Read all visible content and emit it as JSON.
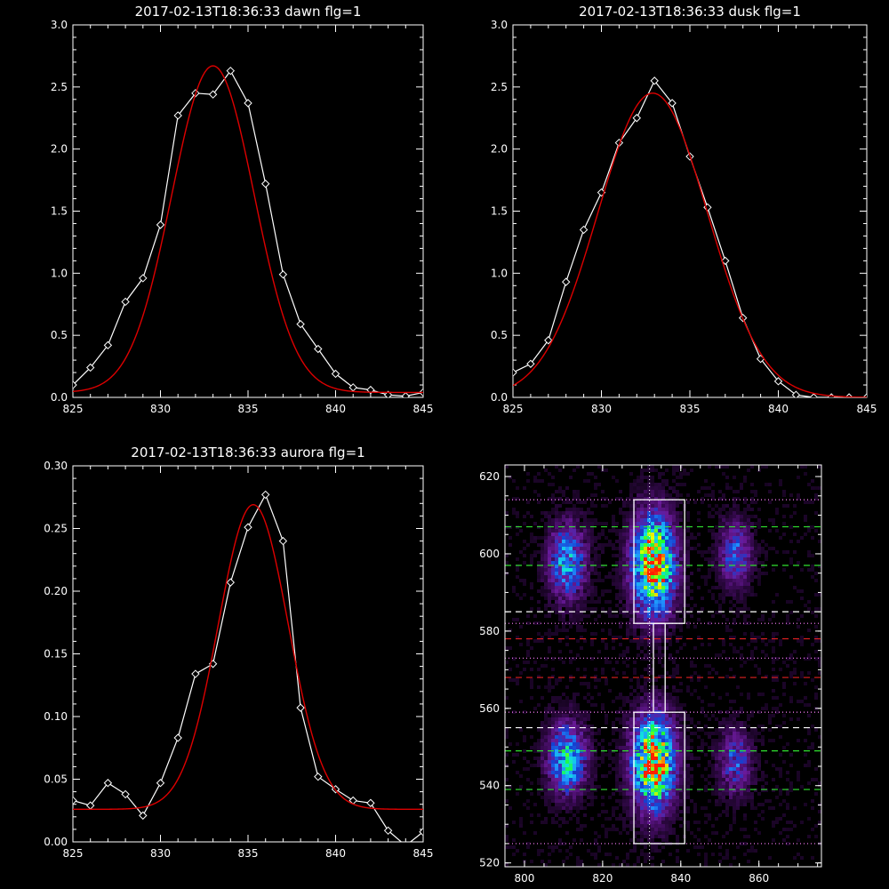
{
  "chart_data": [
    {
      "type": "line",
      "title": "2017-02-13T18:36:33 dawn flg=1",
      "xlim": [
        825,
        845
      ],
      "ylim": [
        0.0,
        3.0
      ],
      "xticks": [
        "825",
        "830",
        "835",
        "840",
        "845"
      ],
      "yticks": [
        "0.0",
        "0.5",
        "1.0",
        "1.5",
        "2.0",
        "2.5",
        "3.0"
      ],
      "series": [
        {
          "kind": "data",
          "color": "#ffffff",
          "x": [
            825,
            826,
            827,
            828,
            829,
            830,
            831,
            832,
            833,
            834,
            835,
            836,
            837,
            838,
            839,
            840,
            841,
            842,
            843,
            844,
            845
          ],
          "y": [
            0.1,
            0.24,
            0.42,
            0.77,
            0.96,
            1.39,
            2.27,
            2.45,
            2.44,
            2.63,
            2.37,
            1.72,
            0.99,
            0.59,
            0.39,
            0.19,
            0.08,
            0.06,
            0.02,
            0.01,
            0.04
          ]
        },
        {
          "kind": "fit",
          "color": "#dd0000",
          "gauss": {
            "a": 2.63,
            "mu": 833.0,
            "sigma": 2.35,
            "b": 0.04
          }
        }
      ]
    },
    {
      "type": "line",
      "title": "2017-02-13T18:36:33 dusk flg=1",
      "xlim": [
        825,
        845
      ],
      "ylim": [
        0.0,
        3.0
      ],
      "xticks": [
        "825",
        "830",
        "835",
        "840",
        "845"
      ],
      "yticks": [
        "0.0",
        "0.5",
        "1.0",
        "1.5",
        "2.0",
        "2.5",
        "3.0"
      ],
      "series": [
        {
          "kind": "data",
          "color": "#ffffff",
          "x": [
            825,
            826,
            827,
            828,
            829,
            830,
            831,
            832,
            833,
            834,
            835,
            836,
            837,
            838,
            839,
            840,
            841,
            842,
            843,
            844,
            845
          ],
          "y": [
            0.2,
            0.27,
            0.46,
            0.93,
            1.35,
            1.65,
            2.05,
            2.25,
            2.55,
            2.37,
            1.94,
            1.53,
            1.1,
            0.64,
            0.31,
            0.13,
            0.02,
            0.0,
            0.0,
            0.0,
            0.0
          ]
        },
        {
          "kind": "fit",
          "color": "#dd0000",
          "gauss": {
            "a": 2.45,
            "mu": 832.9,
            "sigma": 3.1,
            "b": 0.0
          }
        }
      ]
    },
    {
      "type": "line",
      "title": "2017-02-13T18:36:33 aurora flg=1",
      "xlim": [
        825,
        845
      ],
      "ylim": [
        0.0,
        0.3
      ],
      "xticks": [
        "825",
        "830",
        "835",
        "840",
        "845"
      ],
      "yticks": [
        "0.00",
        "0.05",
        "0.10",
        "0.15",
        "0.20",
        "0.25",
        "0.30"
      ],
      "series": [
        {
          "kind": "data",
          "color": "#ffffff",
          "x": [
            825,
            826,
            827,
            828,
            829,
            830,
            831,
            832,
            833,
            834,
            835,
            836,
            837,
            838,
            839,
            840,
            841,
            842,
            843,
            844,
            845
          ],
          "y": [
            0.033,
            0.029,
            0.047,
            0.038,
            0.021,
            0.047,
            0.083,
            0.134,
            0.142,
            0.207,
            0.251,
            0.277,
            0.24,
            0.107,
            0.052,
            0.042,
            0.033,
            0.031,
            0.009,
            -0.003,
            0.008
          ]
        },
        {
          "kind": "fit",
          "color": "#dd0000",
          "gauss": {
            "a": 0.243,
            "mu": 835.3,
            "sigma": 2.0,
            "b": 0.026
          }
        }
      ]
    },
    {
      "type": "heatmap",
      "title": "",
      "xlim": [
        795,
        876
      ],
      "ylim": [
        519,
        623
      ],
      "xticks": [
        "800",
        "820",
        "840",
        "860"
      ],
      "yticks": [
        "520",
        "540",
        "560",
        "580",
        "600",
        "620"
      ],
      "colormap": [
        "#000000",
        "#3a0a55",
        "#6a1a9a",
        "#1540d0",
        "#2090ff",
        "#10e0e0",
        "#20ff30",
        "#e8ff00",
        "#ff2000"
      ],
      "blobs": [
        {
          "x": 811,
          "y": 598,
          "sx": 3.2,
          "sy": 6.5,
          "peak": 0.48
        },
        {
          "x": 833,
          "y": 597,
          "sx": 3.6,
          "sy": 8.5,
          "peak": 0.95
        },
        {
          "x": 854,
          "y": 600,
          "sx": 2.8,
          "sy": 5.5,
          "peak": 0.35
        },
        {
          "x": 811,
          "y": 547,
          "sx": 3.2,
          "sy": 6.0,
          "peak": 0.58
        },
        {
          "x": 833,
          "y": 546,
          "sx": 3.6,
          "sy": 8.0,
          "peak": 0.95
        },
        {
          "x": 854,
          "y": 546,
          "sx": 2.8,
          "sy": 5.5,
          "peak": 0.32
        }
      ],
      "vertical_line_x": 832,
      "boxes": [
        {
          "x0": 828,
          "x1": 841,
          "y0": 582,
          "y1": 614
        },
        {
          "x0": 828,
          "x1": 841,
          "y0": 525,
          "y1": 559
        },
        {
          "x0": 833,
          "x1": 836,
          "y0": 559,
          "y1": 582
        }
      ],
      "hlines": [
        {
          "y": 614,
          "color": "#ff80ff",
          "style": "dotted"
        },
        {
          "y": 607,
          "color": "#30e030",
          "style": "dashed"
        },
        {
          "y": 597,
          "color": "#30e030",
          "style": "dashed"
        },
        {
          "y": 585,
          "color": "#ffffff",
          "style": "dashed"
        },
        {
          "y": 582,
          "color": "#ff80ff",
          "style": "dotted"
        },
        {
          "y": 578,
          "color": "#e02020",
          "style": "dashed"
        },
        {
          "y": 573,
          "color": "#ff80ff",
          "style": "dotted"
        },
        {
          "y": 568,
          "color": "#e02020",
          "style": "dashed"
        },
        {
          "y": 559,
          "color": "#ff80ff",
          "style": "dotted"
        },
        {
          "y": 555,
          "color": "#ffffff",
          "style": "dashed"
        },
        {
          "y": 549,
          "color": "#30e030",
          "style": "dashed"
        },
        {
          "y": 539,
          "color": "#30e030",
          "style": "dashed"
        },
        {
          "y": 525,
          "color": "#ff80ff",
          "style": "dotted"
        }
      ]
    }
  ]
}
